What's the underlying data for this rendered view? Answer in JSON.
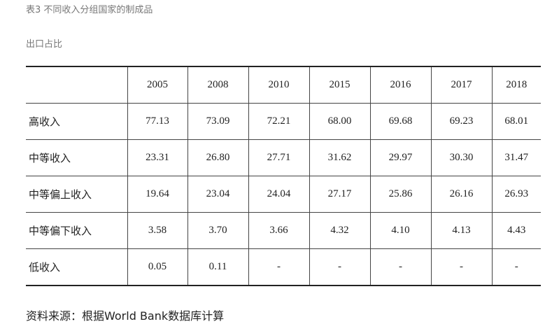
{
  "header": {
    "title": "表3 不同收入分组国家的制成品",
    "subtitle": "出口占比"
  },
  "table": {
    "columns": [
      "",
      "2005",
      "2008",
      "2010",
      "2015",
      "2016",
      "2017",
      "2018"
    ],
    "rows": [
      [
        "高收入",
        "77.13",
        "73.09",
        "72.21",
        "68.00",
        "69.68",
        "69.23",
        "68.01"
      ],
      [
        "中等收入",
        "23.31",
        "26.80",
        "27.71",
        "31.62",
        "29.97",
        "30.30",
        "31.47"
      ],
      [
        "中等偏上收入",
        "19.64",
        "23.04",
        "24.04",
        "27.17",
        "25.86",
        "26.16",
        "26.93"
      ],
      [
        "中等偏下收入",
        "3.58",
        "3.70",
        "3.66",
        "4.32",
        "4.10",
        "4.13",
        "4.43"
      ],
      [
        "低收入",
        "0.05",
        "0.11",
        "-",
        "-",
        "-",
        "-",
        "-"
      ]
    ]
  },
  "footer": {
    "source": "资料来源：根据World Bank数据库计算"
  }
}
